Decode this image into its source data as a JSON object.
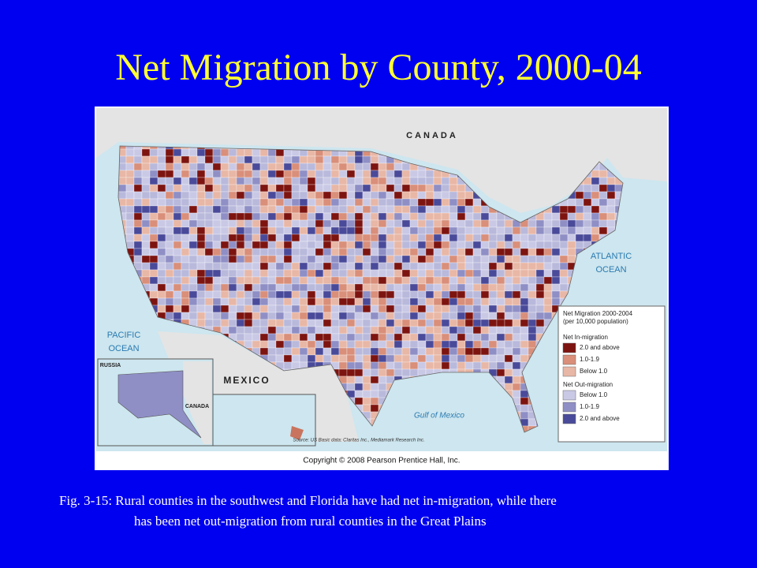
{
  "title": "Net Migration by County, 2000-04",
  "map": {
    "labels": {
      "canada": "CANADA",
      "atlantic": [
        "ATLANTIC",
        "OCEAN"
      ],
      "pacific": [
        "PACIFIC",
        "OCEAN"
      ],
      "mexico": "MEXICO",
      "gulf": "Gulf of Mexico",
      "russia": "RUSSIA",
      "canada_inset": "CANADA"
    },
    "legend": {
      "title": "Net Migration 2000-2004",
      "subtitle": "(per 10,000 population)",
      "groups": [
        {
          "heading": "Net In-migration",
          "items": [
            "2.0 and above",
            "1.0-1.9",
            "Below 1.0"
          ]
        },
        {
          "heading": "Net Out-migration",
          "items": [
            "Below 1.0",
            "1.0-1.9",
            "2.0 and above"
          ]
        }
      ]
    },
    "source": "Source: US Basic data: Claritas Inc., Mediamark Research Inc.",
    "copyright": "Copyright © 2008 Pearson Prentice Hall, Inc."
  },
  "caption": [
    "Fig. 3-15: Rural counties in the southwest and Florida have had net in-migration, while there",
    "has been net out-migration from rural counties in the Great Plains"
  ]
}
